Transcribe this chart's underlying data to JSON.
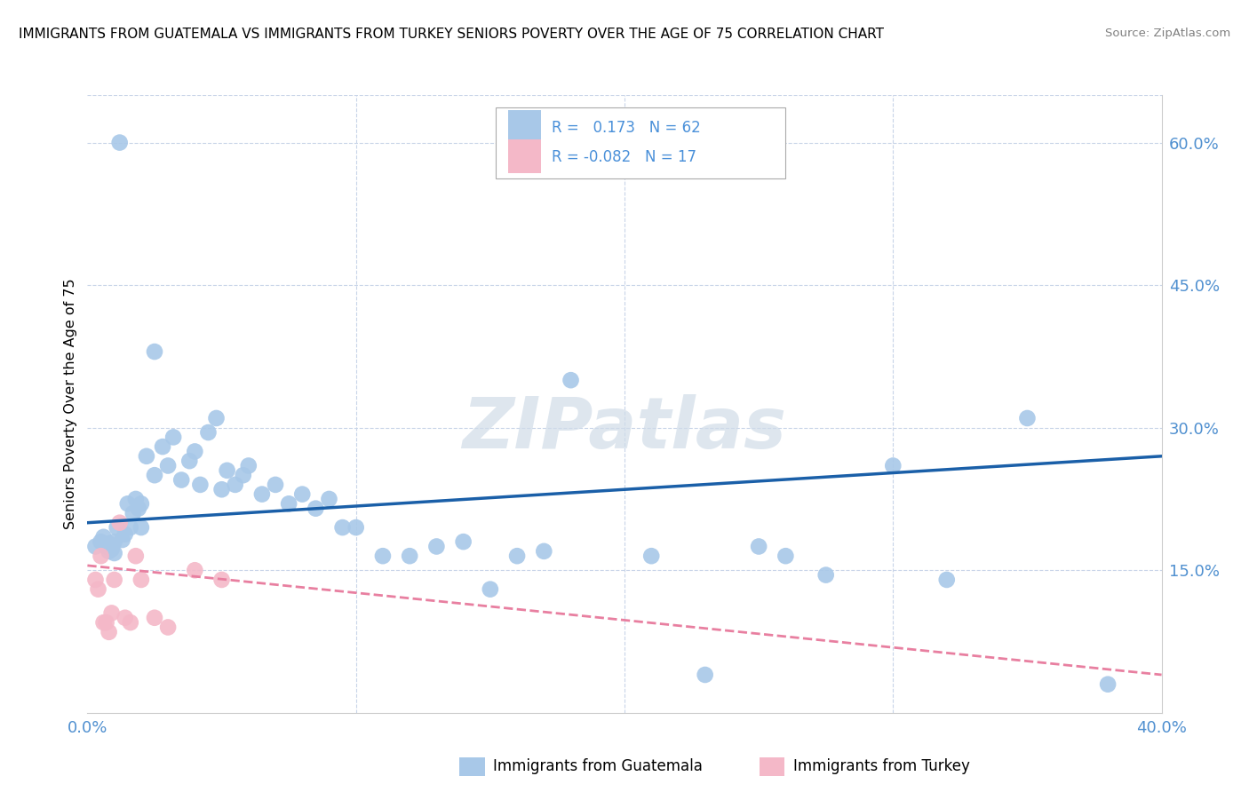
{
  "title": "IMMIGRANTS FROM GUATEMALA VS IMMIGRANTS FROM TURKEY SENIORS POVERTY OVER THE AGE OF 75 CORRELATION CHART",
  "source": "Source: ZipAtlas.com",
  "ylabel": "Seniors Poverty Over the Age of 75",
  "xlim": [
    0.0,
    0.4
  ],
  "ylim": [
    0.0,
    0.65
  ],
  "ytick_labels_right": [
    "60.0%",
    "45.0%",
    "30.0%",
    "15.0%"
  ],
  "ytick_positions_right": [
    0.6,
    0.45,
    0.3,
    0.15
  ],
  "guatemala_color": "#a8c8e8",
  "turkey_color": "#f4b8c8",
  "guatemala_line_color": "#1a5fa8",
  "turkey_line_color": "#e87fa0",
  "background_color": "#ffffff",
  "grid_color": "#c8d4e8",
  "watermark": "ZIPatlas",
  "guatemala_x": [
    0.003,
    0.005,
    0.006,
    0.007,
    0.008,
    0.008,
    0.009,
    0.01,
    0.01,
    0.011,
    0.012,
    0.013,
    0.014,
    0.015,
    0.016,
    0.017,
    0.018,
    0.019,
    0.02,
    0.02,
    0.022,
    0.025,
    0.025,
    0.028,
    0.03,
    0.032,
    0.035,
    0.038,
    0.04,
    0.042,
    0.045,
    0.048,
    0.05,
    0.052,
    0.055,
    0.058,
    0.06,
    0.065,
    0.07,
    0.075,
    0.08,
    0.085,
    0.09,
    0.095,
    0.1,
    0.11,
    0.12,
    0.13,
    0.14,
    0.15,
    0.16,
    0.17,
    0.18,
    0.21,
    0.23,
    0.25,
    0.26,
    0.275,
    0.3,
    0.32,
    0.35,
    0.38
  ],
  "guatemala_y": [
    0.175,
    0.18,
    0.185,
    0.175,
    0.17,
    0.178,
    0.172,
    0.18,
    0.168,
    0.195,
    0.6,
    0.182,
    0.188,
    0.22,
    0.195,
    0.21,
    0.225,
    0.215,
    0.22,
    0.195,
    0.27,
    0.38,
    0.25,
    0.28,
    0.26,
    0.29,
    0.245,
    0.265,
    0.275,
    0.24,
    0.295,
    0.31,
    0.235,
    0.255,
    0.24,
    0.25,
    0.26,
    0.23,
    0.24,
    0.22,
    0.23,
    0.215,
    0.225,
    0.195,
    0.195,
    0.165,
    0.165,
    0.175,
    0.18,
    0.13,
    0.165,
    0.17,
    0.35,
    0.165,
    0.04,
    0.175,
    0.165,
    0.145,
    0.26,
    0.14,
    0.31,
    0.03
  ],
  "turkey_x": [
    0.003,
    0.004,
    0.005,
    0.006,
    0.007,
    0.008,
    0.009,
    0.01,
    0.012,
    0.014,
    0.016,
    0.018,
    0.02,
    0.025,
    0.03,
    0.04,
    0.05
  ],
  "turkey_y": [
    0.14,
    0.13,
    0.165,
    0.095,
    0.095,
    0.085,
    0.105,
    0.14,
    0.2,
    0.1,
    0.095,
    0.165,
    0.14,
    0.1,
    0.09,
    0.15,
    0.14
  ],
  "guatemala_trend_x": [
    0.0,
    0.4
  ],
  "guatemala_trend_y": [
    0.2,
    0.27
  ],
  "turkey_trend_x": [
    0.0,
    0.4
  ],
  "turkey_trend_y": [
    0.155,
    0.04
  ]
}
